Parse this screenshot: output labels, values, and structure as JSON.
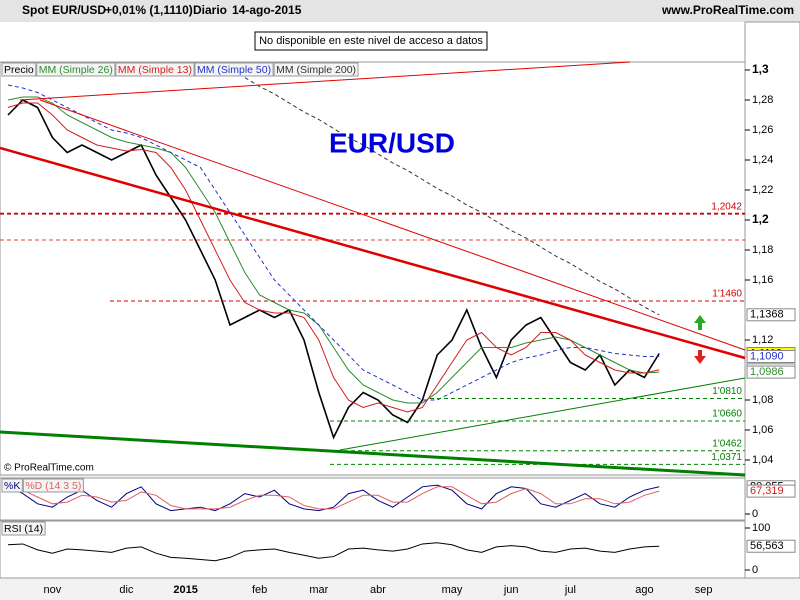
{
  "header": {
    "instrument": "Spot EUR/USD",
    "change": "+0,01% (1,1110)",
    "period": "Diario",
    "date": "14-ago-2015",
    "site": "www.ProRealTime.com",
    "notice": "No disponible en este nivel de acceso a datos",
    "copyright": "© ProRealTime.com"
  },
  "chart_data": [
    {
      "type": "line",
      "title": "EUR/USD",
      "categories": [
        null,
        null,
        null,
        "nov",
        null,
        null,
        null,
        null,
        "dic",
        null,
        null,
        null,
        "2015",
        null,
        null,
        null,
        null,
        "feb",
        null,
        null,
        null,
        "mar",
        null,
        null,
        null,
        "abr",
        null,
        null,
        null,
        null,
        "may",
        null,
        null,
        null,
        "jun",
        null,
        null,
        null,
        "jul",
        null,
        null,
        null,
        null,
        "ago",
        null,
        null,
        null,
        "sep"
      ],
      "series": [
        {
          "name": "Precio",
          "color": "#000000",
          "values": [
            1.27,
            1.28,
            1.275,
            1.255,
            1.245,
            1.25,
            1.245,
            1.24,
            1.245,
            1.25,
            1.23,
            1.215,
            1.2,
            1.18,
            1.16,
            1.13,
            1.135,
            1.14,
            1.135,
            1.14,
            1.12,
            1.085,
            1.055,
            1.075,
            1.085,
            1.08,
            1.07,
            1.065,
            1.08,
            1.11,
            1.12,
            1.14,
            1.115,
            1.095,
            1.12,
            1.13,
            1.135,
            1.12,
            1.105,
            1.1,
            1.11,
            1.09,
            1.1,
            1.095,
            1.111,
            null,
            null,
            null
          ]
        },
        {
          "name": "MM (Simple 26)",
          "color": "#2e8b2e",
          "values": [
            1.28,
            1.282,
            1.282,
            1.278,
            1.27,
            1.265,
            1.26,
            1.255,
            1.252,
            1.25,
            1.248,
            1.245,
            1.235,
            1.22,
            1.205,
            1.185,
            1.165,
            1.15,
            1.145,
            1.14,
            1.138,
            1.13,
            1.115,
            1.1,
            1.09,
            1.085,
            1.08,
            1.078,
            1.078,
            1.085,
            1.095,
            1.105,
            1.115,
            1.115,
            1.115,
            1.118,
            1.12,
            1.122,
            1.12,
            1.115,
            1.11,
            1.105,
            1.1,
            1.098,
            1.0986,
            null,
            null,
            null
          ]
        },
        {
          "name": "MM (Simple 13)",
          "color": "#d21e1e",
          "values": [
            1.275,
            1.278,
            1.278,
            1.27,
            1.26,
            1.255,
            1.25,
            1.248,
            1.246,
            1.247,
            1.245,
            1.235,
            1.22,
            1.2,
            1.18,
            1.16,
            1.145,
            1.14,
            1.138,
            1.138,
            1.135,
            1.12,
            1.095,
            1.08,
            1.075,
            1.078,
            1.075,
            1.072,
            1.075,
            1.09,
            1.105,
            1.12,
            1.125,
            1.115,
            1.11,
            1.115,
            1.125,
            1.125,
            1.12,
            1.11,
            1.105,
            1.1,
            1.098,
            1.098,
            1.1001,
            null,
            null,
            null
          ]
        },
        {
          "name": "MM (Simple 50)",
          "color": "#2233cc",
          "dash": true,
          "values": [
            1.29,
            1.288,
            1.285,
            1.28,
            1.275,
            1.27,
            1.265,
            1.26,
            1.258,
            1.255,
            1.25,
            1.245,
            1.24,
            1.235,
            1.22,
            1.205,
            1.19,
            1.175,
            1.16,
            1.15,
            1.14,
            1.13,
            1.12,
            1.11,
            1.1,
            1.095,
            1.09,
            1.085,
            1.08,
            1.08,
            1.085,
            1.09,
            1.095,
            1.1,
            1.105,
            1.108,
            1.11,
            1.113,
            1.115,
            1.115,
            1.113,
            1.111,
            1.11,
            1.109,
            1.109,
            null,
            null,
            null
          ]
        },
        {
          "name": "MM (Simple 200)",
          "color": "#333333",
          "dash": true,
          "values": [
            null,
            null,
            null,
            null,
            null,
            null,
            null,
            null,
            null,
            null,
            null,
            null,
            null,
            null,
            null,
            null,
            1.295,
            1.289,
            1.284,
            1.278,
            1.272,
            1.267,
            1.261,
            1.255,
            1.25,
            1.244,
            1.238,
            1.233,
            1.227,
            1.221,
            1.216,
            1.21,
            1.205,
            1.199,
            1.193,
            1.188,
            1.182,
            1.176,
            1.171,
            1.165,
            1.159,
            1.154,
            1.148,
            1.142,
            1.1368,
            null,
            null,
            null
          ]
        }
      ],
      "ylim": [
        1.03,
        1.3
      ],
      "yticks": [
        {
          "value": 1.3,
          "label": "1,3"
        },
        {
          "value": 1.28,
          "label": "1,28"
        },
        {
          "value": 1.26,
          "label": "1,26"
        },
        {
          "value": 1.24,
          "label": "1,24"
        },
        {
          "value": 1.22,
          "label": "1,22"
        },
        {
          "value": 1.2,
          "label": "1,2"
        },
        {
          "value": 1.18,
          "label": "1,18"
        },
        {
          "value": 1.16,
          "label": "1,16"
        },
        {
          "value": 1.12,
          "label": "1,12"
        },
        {
          "value": 1.08,
          "label": "1,08"
        },
        {
          "value": 1.06,
          "label": "1,06"
        },
        {
          "value": 1.04,
          "label": "1,04"
        }
      ],
      "levels": [
        {
          "value": 1.2042,
          "label": "1,2042",
          "color": "#d00000"
        },
        {
          "value": 1.146,
          "label": "1'1460",
          "color": "#d00000"
        },
        {
          "value": 1.081,
          "label": "1'0810",
          "color": "#008000"
        },
        {
          "value": 1.066,
          "label": "1'0660",
          "color": "#008000"
        },
        {
          "value": 1.0462,
          "label": "1'0462",
          "color": "#008000"
        },
        {
          "value": 1.0371,
          "label": "1,0371",
          "color": "#008000"
        }
      ],
      "price_labels": [
        {
          "value": 1.1368,
          "label": "1,1368",
          "color": "#ffffff",
          "text_color": "#000000"
        },
        {
          "value": 1.111,
          "label": "1,1110",
          "color": "#ffff00",
          "text_color": "#000000"
        },
        {
          "value": 1.109,
          "label": "1,1090",
          "color": "#ffffff",
          "text_color": "#2233cc"
        },
        {
          "value": 1.1001,
          "label": "1,1001",
          "color": "#ffffff",
          "text_color": "#d21e1e"
        },
        {
          "value": 1.0986,
          "label": "1,0986",
          "color": "#ffffff",
          "text_color": "#2e8b2e"
        }
      ]
    },
    {
      "type": "line",
      "series": [
        {
          "name": "%K",
          "color": "#000080",
          "values": [
            80,
            60,
            30,
            20,
            50,
            70,
            40,
            20,
            60,
            80,
            30,
            10,
            15,
            20,
            10,
            30,
            60,
            50,
            70,
            30,
            15,
            10,
            20,
            60,
            70,
            40,
            20,
            50,
            80,
            85,
            70,
            30,
            15,
            60,
            80,
            75,
            30,
            20,
            40,
            60,
            30,
            20,
            50,
            70,
            80.055,
            null,
            null,
            null
          ]
        },
        {
          "name": "%D (14 3 5)",
          "color": "#e06060",
          "values": [
            70,
            70,
            50,
            30,
            35,
            55,
            50,
            35,
            40,
            65,
            55,
            25,
            15,
            15,
            15,
            20,
            40,
            55,
            55,
            50,
            25,
            15,
            15,
            35,
            55,
            55,
            35,
            35,
            60,
            80,
            80,
            55,
            30,
            35,
            60,
            75,
            60,
            30,
            30,
            45,
            45,
            30,
            35,
            55,
            67.319,
            null,
            null,
            null
          ]
        }
      ],
      "ylim": [
        0,
        100
      ],
      "yticks": [
        0
      ],
      "price_labels": [
        {
          "value": 80.055,
          "label": "80,055",
          "color": "#ffffff",
          "text_color": "#000000"
        },
        {
          "value": 67.319,
          "label": "67,319",
          "color": "#ffffff",
          "text_color": "#d21e1e"
        }
      ]
    },
    {
      "type": "line",
      "series": [
        {
          "name": "RSI (14)",
          "color": "#000000",
          "values": [
            60,
            62,
            48,
            40,
            50,
            48,
            45,
            42,
            52,
            55,
            40,
            30,
            28,
            25,
            22,
            30,
            45,
            48,
            50,
            42,
            35,
            28,
            32,
            50,
            52,
            48,
            45,
            50,
            62,
            65,
            60,
            48,
            42,
            55,
            58,
            55,
            45,
            42,
            50,
            52,
            45,
            42,
            50,
            55,
            56.563,
            null,
            null,
            null
          ]
        }
      ],
      "ylim": [
        0,
        100
      ],
      "yticks": [
        100,
        0
      ],
      "price_labels": [
        {
          "value": 56.563,
          "label": "56,563",
          "color": "#ffffff",
          "text_color": "#000000"
        }
      ]
    }
  ]
}
